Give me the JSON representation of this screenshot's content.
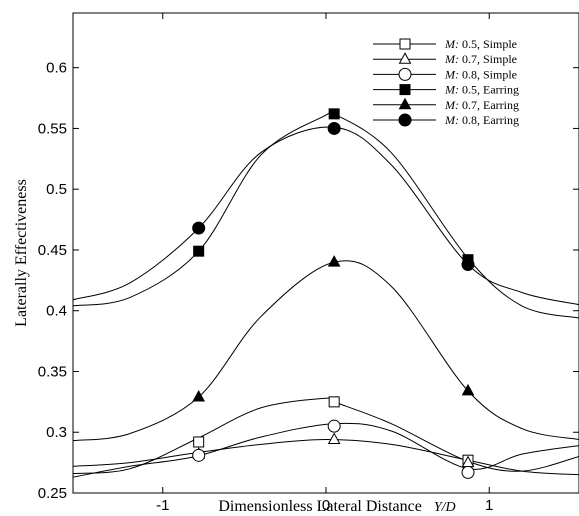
{
  "chart_data": {
    "type": "line",
    "xlabel": "Dimensionless Lateral Distance",
    "xlabel_var": "Y/D",
    "ylabel": "Laterally Effectiveness",
    "xlim": [
      -1.55,
      1.55
    ],
    "ylim": [
      0.25,
      0.645
    ],
    "x_ticks": [
      -1,
      0,
      1
    ],
    "x_tick_labels": [
      "-1",
      "0",
      "1"
    ],
    "y_ticks": [
      0.25,
      0.3,
      0.35,
      0.4,
      0.45,
      0.5,
      0.55,
      0.6
    ],
    "y_tick_labels": [
      "0.25",
      "0.3",
      "0.35",
      "0.4",
      "0.45",
      "0.5",
      "0.55",
      "0.6"
    ],
    "grid": false,
    "legend_position": "top-right",
    "series": [
      {
        "name": "M: 0.5, Simple",
        "legend_m": "M:",
        "legend_rest": " 0.5, Simple",
        "marker": "square-open",
        "x": [
          -1.55,
          -1.2,
          -0.8,
          -0.4,
          0.0,
          0.05,
          0.4,
          0.87,
          1.2,
          1.55
        ],
        "y": [
          0.266,
          0.27,
          0.294,
          0.32,
          0.328,
          0.325,
          0.307,
          0.276,
          0.268,
          0.28
        ],
        "marker_points": [
          [
            -0.78,
            0.292
          ],
          [
            0.05,
            0.325
          ],
          [
            0.87,
            0.277
          ]
        ]
      },
      {
        "name": "M: 0.7, Simple",
        "legend_m": "M:",
        "legend_rest": " 0.7, Simple",
        "marker": "triangle-open",
        "x": [
          -1.55,
          -1.2,
          -0.8,
          -0.4,
          0.0,
          0.4,
          0.87,
          1.2,
          1.55
        ],
        "y": [
          0.272,
          0.275,
          0.283,
          0.29,
          0.294,
          0.29,
          0.277,
          0.268,
          0.265
        ],
        "marker_points": [
          [
            -0.78,
            0.282
          ],
          [
            0.05,
            0.294
          ],
          [
            0.87,
            0.275
          ]
        ]
      },
      {
        "name": "M: 0.8, Simple",
        "legend_m": "M:",
        "legend_rest": " 0.8, Simple",
        "marker": "circle-open",
        "x": [
          -1.55,
          -1.2,
          -0.8,
          -0.4,
          0.05,
          0.4,
          0.87,
          1.2,
          1.55
        ],
        "y": [
          0.263,
          0.272,
          0.28,
          0.296,
          0.307,
          0.301,
          0.27,
          0.282,
          0.289
        ],
        "marker_points": [
          [
            -0.78,
            0.281
          ],
          [
            0.05,
            0.305
          ],
          [
            0.87,
            0.267
          ]
        ]
      },
      {
        "name": "M: 0.5, Earring",
        "legend_m": "M:",
        "legend_rest": " 0.5, Earring",
        "marker": "square-filled",
        "x": [
          -1.55,
          -1.2,
          -0.78,
          -0.4,
          0.0,
          0.05,
          0.4,
          0.87,
          1.2,
          1.55
        ],
        "y": [
          0.404,
          0.411,
          0.449,
          0.528,
          0.561,
          0.562,
          0.53,
          0.443,
          0.404,
          0.394
        ],
        "marker_points": [
          [
            -0.78,
            0.449
          ],
          [
            0.05,
            0.562
          ],
          [
            0.87,
            0.442
          ]
        ]
      },
      {
        "name": "M: 0.7, Earring",
        "legend_m": "M:",
        "legend_rest": " 0.7, Earring",
        "marker": "triangle-filled",
        "x": [
          -1.55,
          -1.2,
          -0.78,
          -0.4,
          0.05,
          0.4,
          0.87,
          1.2,
          1.55
        ],
        "y": [
          0.293,
          0.299,
          0.329,
          0.395,
          0.44,
          0.42,
          0.334,
          0.303,
          0.294
        ],
        "marker_points": [
          [
            -0.78,
            0.329
          ],
          [
            0.05,
            0.44
          ],
          [
            0.87,
            0.334
          ]
        ]
      },
      {
        "name": "M: 0.8, Earring",
        "legend_m": "M:",
        "legend_rest": " 0.8, Earring",
        "marker": "circle-filled",
        "x": [
          -1.55,
          -1.2,
          -0.78,
          -0.4,
          0.05,
          0.4,
          0.87,
          1.2,
          1.55
        ],
        "y": [
          0.409,
          0.423,
          0.468,
          0.53,
          0.551,
          0.52,
          0.438,
          0.415,
          0.405
        ],
        "marker_points": [
          [
            -0.78,
            0.468
          ],
          [
            0.05,
            0.55
          ],
          [
            0.87,
            0.438
          ]
        ]
      }
    ]
  }
}
